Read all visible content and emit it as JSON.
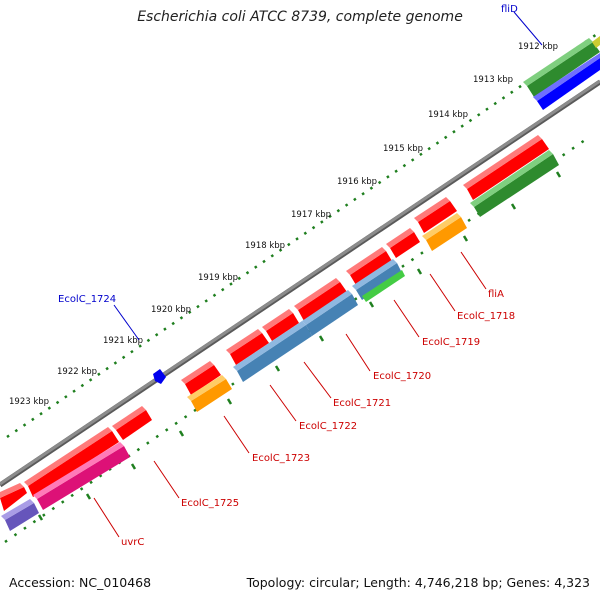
{
  "title": "Escherichia coli ATCC 8739, complete genome",
  "footer": {
    "accession_label": "Accession:",
    "accession": "NC_010468",
    "topology_label": "Topology:",
    "topology": "circular",
    "length_label": "Length:",
    "length": "4,746,218 bp",
    "genes_label": "Genes:",
    "genes": "4,323"
  },
  "colors": {
    "backbone": "#7f7f7f",
    "tick": "#1f7f1f",
    "cds_forward": "#ff0000",
    "cds_reverse_label": "#cc0000",
    "label_blue": "#0000cc",
    "green": "#2e8b2e",
    "blue": "#0000ff",
    "steelblue": "#4682b4",
    "orange": "#ff9900",
    "lightgreen": "#44cc44",
    "magenta": "#ee2288",
    "purple": "#7766cc"
  },
  "kbp_labels": [
    "1912 kbp",
    "1913 kbp",
    "1914 kbp",
    "1915 kbp",
    "1916 kbp",
    "1917 kbp",
    "1918 kbp",
    "1919 kbp",
    "1920 kbp",
    "1921 kbp",
    "1922 kbp",
    "1923 kbp"
  ],
  "gene_labels": [
    "fliD",
    "EcolC_1724",
    "fliA",
    "EcolC_1718",
    "EcolC_1719",
    "EcolC_1720",
    "EcolC_1721",
    "EcolC_1722",
    "EcolC_1723",
    "EcolC_1725",
    "uvrC"
  ]
}
